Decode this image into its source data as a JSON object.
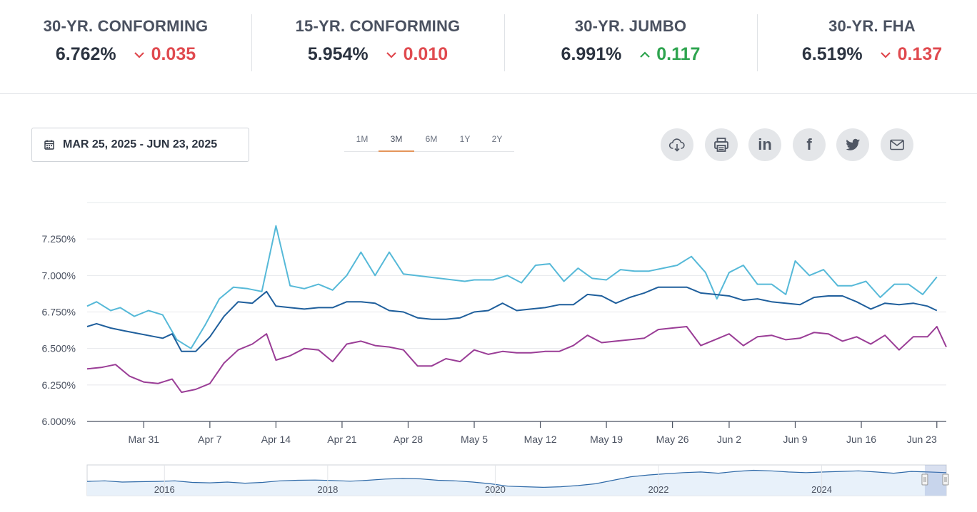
{
  "rates": [
    {
      "title": "30-YR. CONFORMING",
      "rate": "6.762%",
      "change": "0.035",
      "direction": "down"
    },
    {
      "title": "15-YR. CONFORMING",
      "rate": "5.954%",
      "change": "0.010",
      "direction": "down"
    },
    {
      "title": "30-YR. JUMBO",
      "rate": "6.991%",
      "change": "0.117",
      "direction": "up"
    },
    {
      "title": "30-YR. FHA",
      "rate": "6.519%",
      "change": "0.137",
      "direction": "down"
    }
  ],
  "date_range": {
    "label": "MAR 25, 2025 - JUN 23, 2025",
    "icon": "calendar-icon"
  },
  "periods": [
    "1M",
    "3M",
    "6M",
    "1Y",
    "2Y"
  ],
  "active_period": "3M",
  "share_buttons": [
    {
      "name": "download",
      "icon": "cloud-download-icon"
    },
    {
      "name": "print",
      "icon": "print-icon"
    },
    {
      "name": "linkedin",
      "icon": "linkedin-icon",
      "text": "in"
    },
    {
      "name": "facebook",
      "icon": "facebook-icon",
      "text": "f"
    },
    {
      "name": "twitter",
      "icon": "twitter-icon"
    },
    {
      "name": "email",
      "icon": "mail-icon"
    }
  ],
  "colors": {
    "series_light_blue": "#56b9d8",
    "series_dark_blue": "#1f5f9c",
    "series_purple": "#9a3d96",
    "down": "#e04a4f",
    "up": "#2ea44f",
    "tab_accent": "#e5955b"
  },
  "chart_data": {
    "type": "line",
    "ylim": [
      6.0,
      7.5
    ],
    "y_ticks": [
      "6.000%",
      "6.250%",
      "6.500%",
      "6.750%",
      "7.000%",
      "7.250%"
    ],
    "x_ticks": [
      "Mar 31",
      "Apr 7",
      "Apr 14",
      "Apr 21",
      "Apr 28",
      "May 5",
      "May 12",
      "May 19",
      "May 26",
      "Jun 2",
      "Jun 9",
      "Jun 16",
      "Jun 23"
    ],
    "x_tick_days": [
      6,
      13,
      20,
      27,
      34,
      41,
      48,
      55,
      62,
      68,
      75,
      82,
      90
    ],
    "x_domain_days": [
      0,
      91
    ],
    "series": [
      {
        "color": "#56b9d8",
        "points": [
          [
            0,
            6.79
          ],
          [
            1,
            6.82
          ],
          [
            2.5,
            6.76
          ],
          [
            3.5,
            6.78
          ],
          [
            5,
            6.72
          ],
          [
            6.5,
            6.76
          ],
          [
            8,
            6.73
          ],
          [
            9.5,
            6.56
          ],
          [
            11,
            6.5
          ],
          [
            12.5,
            6.66
          ],
          [
            14,
            6.84
          ],
          [
            15.5,
            6.92
          ],
          [
            17,
            6.91
          ],
          [
            18.5,
            6.89
          ],
          [
            20,
            7.34
          ],
          [
            21.5,
            6.93
          ],
          [
            23,
            6.91
          ],
          [
            24.5,
            6.94
          ],
          [
            26,
            6.9
          ],
          [
            27.5,
            7.0
          ],
          [
            29,
            7.16
          ],
          [
            30.5,
            7.0
          ],
          [
            32,
            7.16
          ],
          [
            33.5,
            7.01
          ],
          [
            40,
            6.96
          ],
          [
            41,
            6.97
          ],
          [
            43,
            6.97
          ],
          [
            44.5,
            7.0
          ],
          [
            46,
            6.95
          ],
          [
            47.5,
            7.07
          ],
          [
            49,
            7.08
          ],
          [
            50.5,
            6.96
          ],
          [
            52,
            7.05
          ],
          [
            53.5,
            6.98
          ],
          [
            55,
            6.97
          ],
          [
            56.5,
            7.04
          ],
          [
            58,
            7.03
          ],
          [
            59.5,
            7.03
          ],
          [
            61,
            7.05
          ],
          [
            62.5,
            7.07
          ],
          [
            64,
            7.13
          ],
          [
            65.5,
            7.02
          ],
          [
            66.7,
            6.84
          ],
          [
            68,
            7.02
          ],
          [
            69.5,
            7.07
          ],
          [
            71,
            6.94
          ],
          [
            72.5,
            6.94
          ],
          [
            74,
            6.87
          ],
          [
            75,
            7.1
          ],
          [
            76.5,
            7.0
          ],
          [
            78,
            7.04
          ],
          [
            79.5,
            6.93
          ],
          [
            81,
            6.93
          ],
          [
            82.5,
            6.96
          ],
          [
            84,
            6.85
          ],
          [
            85.5,
            6.94
          ],
          [
            87,
            6.94
          ],
          [
            88.5,
            6.87
          ],
          [
            90,
            6.99
          ]
        ]
      },
      {
        "color": "#1f5f9c",
        "points": [
          [
            0,
            6.65
          ],
          [
            1,
            6.67
          ],
          [
            2.5,
            6.64
          ],
          [
            4,
            6.62
          ],
          [
            8,
            6.57
          ],
          [
            9,
            6.6
          ],
          [
            10,
            6.48
          ],
          [
            11.5,
            6.48
          ],
          [
            13,
            6.58
          ],
          [
            14.5,
            6.72
          ],
          [
            16,
            6.82
          ],
          [
            17.5,
            6.81
          ],
          [
            19,
            6.89
          ],
          [
            20,
            6.79
          ],
          [
            21.5,
            6.78
          ],
          [
            23,
            6.77
          ],
          [
            24.5,
            6.78
          ],
          [
            26,
            6.78
          ],
          [
            27.5,
            6.82
          ],
          [
            29,
            6.82
          ],
          [
            30.5,
            6.81
          ],
          [
            32,
            6.76
          ],
          [
            33.5,
            6.75
          ],
          [
            35,
            6.71
          ],
          [
            36.5,
            6.7
          ],
          [
            38,
            6.7
          ],
          [
            39.5,
            6.71
          ],
          [
            41,
            6.75
          ],
          [
            42.5,
            6.76
          ],
          [
            44,
            6.81
          ],
          [
            45.5,
            6.76
          ],
          [
            47,
            6.77
          ],
          [
            48.5,
            6.78
          ],
          [
            50,
            6.8
          ],
          [
            51.5,
            6.8
          ],
          [
            53,
            6.87
          ],
          [
            54.5,
            6.86
          ],
          [
            56,
            6.81
          ],
          [
            57.5,
            6.85
          ],
          [
            59,
            6.88
          ],
          [
            60.5,
            6.92
          ],
          [
            62,
            6.92
          ],
          [
            63.5,
            6.92
          ],
          [
            65,
            6.88
          ],
          [
            66.5,
            6.87
          ],
          [
            68,
            6.86
          ],
          [
            69.5,
            6.83
          ],
          [
            71,
            6.84
          ],
          [
            72.5,
            6.82
          ],
          [
            74,
            6.81
          ],
          [
            75.5,
            6.8
          ],
          [
            77,
            6.85
          ],
          [
            78.5,
            6.86
          ],
          [
            80,
            6.86
          ],
          [
            81.5,
            6.82
          ],
          [
            83,
            6.77
          ],
          [
            84.5,
            6.81
          ],
          [
            86,
            6.8
          ],
          [
            87.5,
            6.81
          ],
          [
            89,
            6.79
          ],
          [
            90,
            6.76
          ]
        ]
      },
      {
        "color": "#9a3d96",
        "points": [
          [
            0,
            6.36
          ],
          [
            1.5,
            6.37
          ],
          [
            3,
            6.39
          ],
          [
            4.5,
            6.31
          ],
          [
            6,
            6.27
          ],
          [
            7.5,
            6.26
          ],
          [
            9,
            6.29
          ],
          [
            10,
            6.2
          ],
          [
            11.5,
            6.22
          ],
          [
            13,
            6.26
          ],
          [
            14.5,
            6.4
          ],
          [
            16,
            6.49
          ],
          [
            17.5,
            6.53
          ],
          [
            19,
            6.6
          ],
          [
            20,
            6.42
          ],
          [
            21.5,
            6.45
          ],
          [
            23,
            6.5
          ],
          [
            24.5,
            6.49
          ],
          [
            26,
            6.41
          ],
          [
            27.5,
            6.53
          ],
          [
            29,
            6.55
          ],
          [
            30.5,
            6.52
          ],
          [
            32,
            6.51
          ],
          [
            33.5,
            6.49
          ],
          [
            35,
            6.38
          ],
          [
            36.5,
            6.38
          ],
          [
            38,
            6.43
          ],
          [
            39.5,
            6.41
          ],
          [
            41,
            6.49
          ],
          [
            42.5,
            6.46
          ],
          [
            44,
            6.48
          ],
          [
            45.5,
            6.47
          ],
          [
            47,
            6.47
          ],
          [
            48.5,
            6.48
          ],
          [
            50,
            6.48
          ],
          [
            51.5,
            6.52
          ],
          [
            53,
            6.59
          ],
          [
            54.5,
            6.54
          ],
          [
            56,
            6.55
          ],
          [
            57.5,
            6.56
          ],
          [
            59,
            6.57
          ],
          [
            60.5,
            6.63
          ],
          [
            62,
            6.64
          ],
          [
            63.5,
            6.65
          ],
          [
            65,
            6.52
          ],
          [
            66.5,
            6.56
          ],
          [
            68,
            6.6
          ],
          [
            69.5,
            6.52
          ],
          [
            71,
            6.58
          ],
          [
            72.5,
            6.59
          ],
          [
            74,
            6.56
          ],
          [
            75.5,
            6.57
          ],
          [
            77,
            6.61
          ],
          [
            78.5,
            6.6
          ],
          [
            80,
            6.55
          ],
          [
            81.5,
            6.58
          ],
          [
            83,
            6.53
          ],
          [
            84.5,
            6.59
          ],
          [
            86,
            6.49
          ],
          [
            87.5,
            6.58
          ],
          [
            89,
            6.58
          ],
          [
            90,
            6.65
          ],
          [
            91,
            6.51
          ]
        ]
      }
    ]
  },
  "navigator": {
    "year_labels": [
      "2016",
      "2018",
      "2020",
      "2022",
      "2024"
    ],
    "year_positions": [
      0.09,
      0.28,
      0.475,
      0.665,
      0.855
    ],
    "series": [
      6.5,
      6.55,
      6.45,
      6.48,
      6.5,
      6.55,
      6.42,
      6.38,
      6.45,
      6.35,
      6.42,
      6.55,
      6.6,
      6.62,
      6.58,
      6.52,
      6.6,
      6.7,
      6.75,
      6.72,
      6.6,
      6.55,
      6.45,
      6.3,
      6.1,
      6.05,
      6.0,
      6.05,
      6.15,
      6.3,
      6.6,
      6.9,
      7.05,
      7.15,
      7.25,
      7.3,
      7.2,
      7.35,
      7.45,
      7.4,
      7.3,
      7.25,
      7.3,
      7.35,
      7.4,
      7.3,
      7.2,
      7.35,
      7.3,
      7.25
    ],
    "range_start": 0.975,
    "range_end": 1.0
  }
}
